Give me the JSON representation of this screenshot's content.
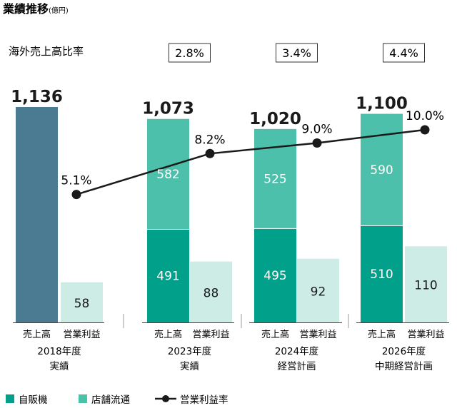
{
  "title": "業績推移",
  "unit": "(億円)",
  "overseas_ratio_label": "海外売上高比率",
  "colors": {
    "vending": "#00a08a",
    "retail": "#4dc0ab",
    "total_2018": "#4a7b92",
    "operating_income": "#cdece6",
    "line": "#1a1a1a"
  },
  "chart_data": {
    "type": "bar",
    "groups": [
      {
        "year_label": "2018年度",
        "status_label": "実績",
        "total": 1136,
        "total_label": "1,136",
        "vending": null,
        "retail": null,
        "operating_income": 58,
        "operating_margin": 5.1,
        "operating_margin_label": "5.1%",
        "overseas_ratio": null,
        "overseas_ratio_label": ""
      },
      {
        "year_label": "2023年度",
        "status_label": "実績",
        "total": 1073,
        "total_label": "1,073",
        "vending": 491,
        "retail": 582,
        "operating_income": 88,
        "operating_margin": 8.2,
        "operating_margin_label": "8.2%",
        "overseas_ratio": 2.8,
        "overseas_ratio_label": "2.8%"
      },
      {
        "year_label": "2024年度",
        "status_label": "経営計画",
        "total": 1020,
        "total_label": "1,020",
        "vending": 495,
        "retail": 525,
        "operating_income": 92,
        "operating_margin": 9.0,
        "operating_margin_label": "9.0%",
        "overseas_ratio": 3.4,
        "overseas_ratio_label": "3.4%"
      },
      {
        "year_label": "2026年度",
        "status_label": "中期経営計画",
        "total": 1100,
        "total_label": "1,100",
        "vending": 510,
        "retail": 590,
        "operating_income": 110,
        "operating_margin": 10.0,
        "operating_margin_label": "10.0%",
        "overseas_ratio": 4.4,
        "overseas_ratio_label": "4.4%"
      }
    ],
    "bar_labels": {
      "sales": "売上高",
      "operating_income": "営業利益"
    },
    "legend": {
      "vending": "自販機",
      "retail": "店舗流通",
      "margin": "営業利益率"
    }
  }
}
